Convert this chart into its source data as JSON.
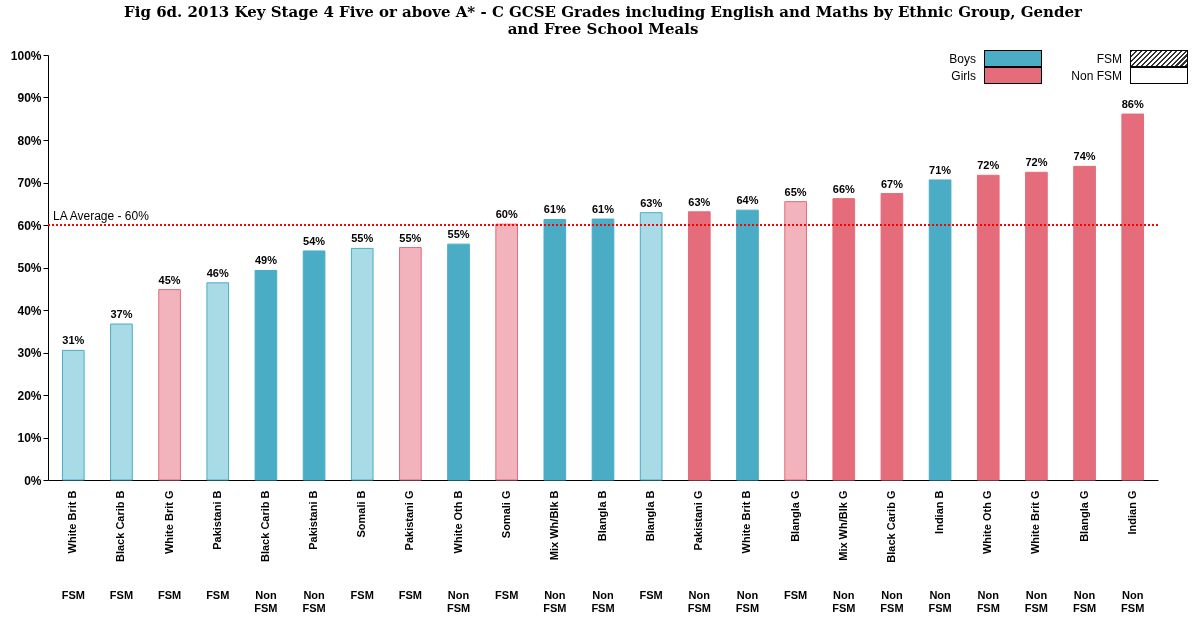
{
  "chart_data": {
    "type": "bar",
    "title": "Fig 6d. 2013 Key Stage 4 Five or above A* - C GCSE Grades including English and Maths by Ethnic Group, Gender and Free School Meals",
    "categories": [
      "White Brit B\nFSM",
      "Black Carib B\nFSM",
      "White Brit G\nFSM",
      "Pakistani B\nFSM",
      "Black Carib B\nNon FSM",
      "Pakistani B\nNon FSM",
      "Somali B\nFSM",
      "Pakistani G\nFSM",
      "White Oth B\nNon FSM",
      "Somali G\nFSM",
      "Mix Wh/Blk B\nNon FSM",
      "Blangla B\nNon FSM",
      "Blangla B\nFSM",
      "Pakistani G\nNon FSM",
      "White Brit B\nNon FSM",
      "Blangla G\nFSM",
      "Mix Wh/Blk G\nNon FSM",
      "Black Carib G\nNon FSM",
      "Indian B\nNon FSM",
      "White Oth G\nNon FSM",
      "White Brit G\nNon FSM",
      "Blangla G\nNon FSM",
      "Indian G\nNon FSM"
    ],
    "series": [
      {
        "name": "Boys",
        "color": "#4bacc6",
        "colors": [
          "#a8dbe6",
          "#a8dbe6",
          null,
          "#a8dbe6",
          "#4bacc6",
          "#4bacc6",
          "#a8dbe6",
          null,
          "#4bacc6",
          null,
          "#4bacc6",
          "#4bacc6",
          "#a8dbe6",
          null,
          "#4bacc6",
          null,
          null,
          null,
          "#4bacc6",
          null,
          null,
          null,
          null
        ],
        "values": [
          30.5,
          36.7,
          null,
          46.4,
          49.3,
          53.9,
          54.5,
          null,
          55.5,
          null,
          61.3,
          61.4,
          62.9,
          null,
          63.5,
          null,
          null,
          null,
          70.6,
          null,
          null,
          null,
          null
        ],
        "value_labels": [
          "31%",
          "37%",
          null,
          "46%",
          "49%",
          "54%",
          "55%",
          null,
          "55%",
          null,
          "61%",
          "61%",
          "63%",
          null,
          "64%",
          null,
          null,
          null,
          "71%",
          null,
          null,
          null,
          null
        ]
      },
      {
        "name": "Girls",
        "color": "#e46c7b",
        "colors": [
          null,
          null,
          "#f2b3bc",
          null,
          null,
          null,
          null,
          "#f2b3bc",
          null,
          "#f2b3bc",
          null,
          null,
          null,
          "#e46c7b",
          null,
          "#f2b3bc",
          "#e46c7b",
          "#e46c7b",
          null,
          "#e46c7b",
          "#e46c7b",
          "#e46c7b",
          "#e46c7b"
        ],
        "values": [
          null,
          null,
          44.8,
          null,
          null,
          null,
          null,
          54.7,
          null,
          60.2,
          null,
          null,
          null,
          63.1,
          null,
          65.5,
          66.2,
          67.4,
          null,
          71.7,
          72.4,
          73.8,
          86.1
        ],
        "value_labels": [
          null,
          null,
          "45%",
          null,
          null,
          null,
          null,
          "55%",
          null,
          "60%",
          null,
          null,
          null,
          "63%",
          null,
          "65%",
          "66%",
          "67%",
          null,
          "72%",
          "72%",
          "74%",
          "86%"
        ]
      }
    ],
    "ylim": [
      0,
      100
    ],
    "yticks": [
      {
        "value": 0,
        "label": "0%"
      },
      {
        "value": 10,
        "label": "10%"
      },
      {
        "value": 20,
        "label": "20%"
      },
      {
        "value": 30,
        "label": "30%"
      },
      {
        "value": 40,
        "label": "40%"
      },
      {
        "value": 50,
        "label": "50%"
      },
      {
        "value": 60,
        "label": "60%"
      },
      {
        "value": 70,
        "label": "70%"
      },
      {
        "value": 80,
        "label": "80%"
      },
      {
        "value": 90,
        "label": "90%"
      },
      {
        "value": 100,
        "label": "100%"
      }
    ],
    "ref_lines": [
      {
        "axis": "y",
        "value": 60,
        "label": "LA Average - 60%",
        "color": "#ff0000",
        "line_style": "dotted"
      }
    ],
    "annotations": [
      "FSM",
      "Non FSM"
    ],
    "legend": "top right"
  }
}
